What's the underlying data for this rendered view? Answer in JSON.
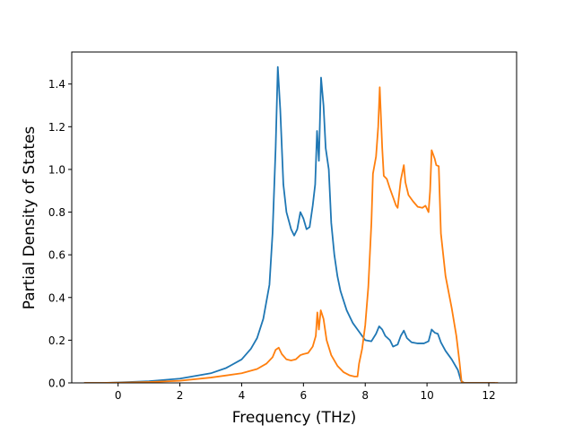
{
  "chart_data": {
    "type": "line",
    "title": "",
    "xlabel": "Frequency (THz)",
    "ylabel": "Partial Density of States",
    "xlim": [
      -1.5,
      12.9
    ],
    "ylim": [
      0.0,
      1.55
    ],
    "x_ticks": [
      0,
      2,
      4,
      6,
      8,
      10,
      12
    ],
    "y_ticks": [
      0.0,
      0.2,
      0.4,
      0.6,
      0.8,
      1.0,
      1.2,
      1.4
    ],
    "x_tick_labels": [
      "0",
      "2",
      "4",
      "6",
      "8",
      "10",
      "12"
    ],
    "y_tick_labels": [
      "0.0",
      "0.2",
      "0.4",
      "0.6",
      "0.8",
      "1.0",
      "1.2",
      "1.4"
    ],
    "grid": false,
    "legend": "none",
    "series": [
      {
        "color": "#1f77b4",
        "points": [
          [
            -1.1,
            0.0
          ],
          [
            -0.5,
            0.0
          ],
          [
            0.0,
            0.002
          ],
          [
            1.0,
            0.008
          ],
          [
            2.0,
            0.02
          ],
          [
            3.0,
            0.045
          ],
          [
            3.5,
            0.07
          ],
          [
            4.0,
            0.11
          ],
          [
            4.3,
            0.16
          ],
          [
            4.5,
            0.21
          ],
          [
            4.7,
            0.3
          ],
          [
            4.9,
            0.46
          ],
          [
            5.0,
            0.7
          ],
          [
            5.1,
            1.1
          ],
          [
            5.17,
            1.48
          ],
          [
            5.25,
            1.28
          ],
          [
            5.35,
            0.93
          ],
          [
            5.45,
            0.8
          ],
          [
            5.6,
            0.72
          ],
          [
            5.7,
            0.69
          ],
          [
            5.8,
            0.72
          ],
          [
            5.9,
            0.8
          ],
          [
            6.0,
            0.77
          ],
          [
            6.1,
            0.72
          ],
          [
            6.2,
            0.73
          ],
          [
            6.3,
            0.83
          ],
          [
            6.38,
            0.93
          ],
          [
            6.44,
            1.18
          ],
          [
            6.5,
            1.04
          ],
          [
            6.57,
            1.43
          ],
          [
            6.65,
            1.3
          ],
          [
            6.72,
            1.1
          ],
          [
            6.82,
            1.0
          ],
          [
            6.9,
            0.75
          ],
          [
            7.0,
            0.6
          ],
          [
            7.1,
            0.5
          ],
          [
            7.2,
            0.43
          ],
          [
            7.4,
            0.34
          ],
          [
            7.6,
            0.28
          ],
          [
            7.8,
            0.24
          ],
          [
            8.0,
            0.2
          ],
          [
            8.2,
            0.195
          ],
          [
            8.35,
            0.23
          ],
          [
            8.45,
            0.265
          ],
          [
            8.55,
            0.25
          ],
          [
            8.65,
            0.22
          ],
          [
            8.8,
            0.2
          ],
          [
            8.9,
            0.17
          ],
          [
            9.05,
            0.18
          ],
          [
            9.15,
            0.22
          ],
          [
            9.25,
            0.245
          ],
          [
            9.35,
            0.21
          ],
          [
            9.5,
            0.19
          ],
          [
            9.7,
            0.185
          ],
          [
            9.9,
            0.185
          ],
          [
            10.05,
            0.195
          ],
          [
            10.15,
            0.25
          ],
          [
            10.25,
            0.235
          ],
          [
            10.35,
            0.23
          ],
          [
            10.45,
            0.19
          ],
          [
            10.6,
            0.15
          ],
          [
            10.8,
            0.11
          ],
          [
            11.0,
            0.06
          ],
          [
            11.1,
            0.01
          ],
          [
            11.2,
            0.0
          ],
          [
            11.7,
            0.0
          ],
          [
            12.2,
            0.0
          ]
        ]
      },
      {
        "color": "#ff7f0e",
        "points": [
          [
            -1.1,
            0.0
          ],
          [
            -0.5,
            0.0
          ],
          [
            0.0,
            0.001
          ],
          [
            1.0,
            0.004
          ],
          [
            2.0,
            0.01
          ],
          [
            3.0,
            0.025
          ],
          [
            4.0,
            0.045
          ],
          [
            4.5,
            0.065
          ],
          [
            4.8,
            0.09
          ],
          [
            5.0,
            0.12
          ],
          [
            5.1,
            0.155
          ],
          [
            5.2,
            0.165
          ],
          [
            5.3,
            0.135
          ],
          [
            5.45,
            0.11
          ],
          [
            5.6,
            0.105
          ],
          [
            5.75,
            0.11
          ],
          [
            5.9,
            0.13
          ],
          [
            6.0,
            0.135
          ],
          [
            6.15,
            0.14
          ],
          [
            6.3,
            0.17
          ],
          [
            6.4,
            0.22
          ],
          [
            6.45,
            0.33
          ],
          [
            6.5,
            0.25
          ],
          [
            6.56,
            0.34
          ],
          [
            6.65,
            0.3
          ],
          [
            6.75,
            0.2
          ],
          [
            6.9,
            0.13
          ],
          [
            7.1,
            0.08
          ],
          [
            7.3,
            0.05
          ],
          [
            7.5,
            0.035
          ],
          [
            7.65,
            0.03
          ],
          [
            7.75,
            0.03
          ],
          [
            7.8,
            0.09
          ],
          [
            7.9,
            0.16
          ],
          [
            8.0,
            0.27
          ],
          [
            8.1,
            0.45
          ],
          [
            8.2,
            0.75
          ],
          [
            8.25,
            0.98
          ],
          [
            8.35,
            1.06
          ],
          [
            8.42,
            1.2
          ],
          [
            8.47,
            1.385
          ],
          [
            8.55,
            1.1
          ],
          [
            8.6,
            0.97
          ],
          [
            8.7,
            0.955
          ],
          [
            8.8,
            0.91
          ],
          [
            8.9,
            0.87
          ],
          [
            9.0,
            0.83
          ],
          [
            9.05,
            0.82
          ],
          [
            9.15,
            0.95
          ],
          [
            9.25,
            1.02
          ],
          [
            9.3,
            0.94
          ],
          [
            9.4,
            0.88
          ],
          [
            9.55,
            0.85
          ],
          [
            9.7,
            0.825
          ],
          [
            9.85,
            0.82
          ],
          [
            9.95,
            0.83
          ],
          [
            10.05,
            0.8
          ],
          [
            10.1,
            0.9
          ],
          [
            10.15,
            1.09
          ],
          [
            10.25,
            1.05
          ],
          [
            10.3,
            1.02
          ],
          [
            10.38,
            1.015
          ],
          [
            10.45,
            0.7
          ],
          [
            10.6,
            0.5
          ],
          [
            10.8,
            0.35
          ],
          [
            10.95,
            0.22
          ],
          [
            11.05,
            0.1
          ],
          [
            11.12,
            0.005
          ],
          [
            11.2,
            0.0
          ],
          [
            12.0,
            0.0
          ],
          [
            12.3,
            0.0
          ]
        ]
      }
    ]
  }
}
